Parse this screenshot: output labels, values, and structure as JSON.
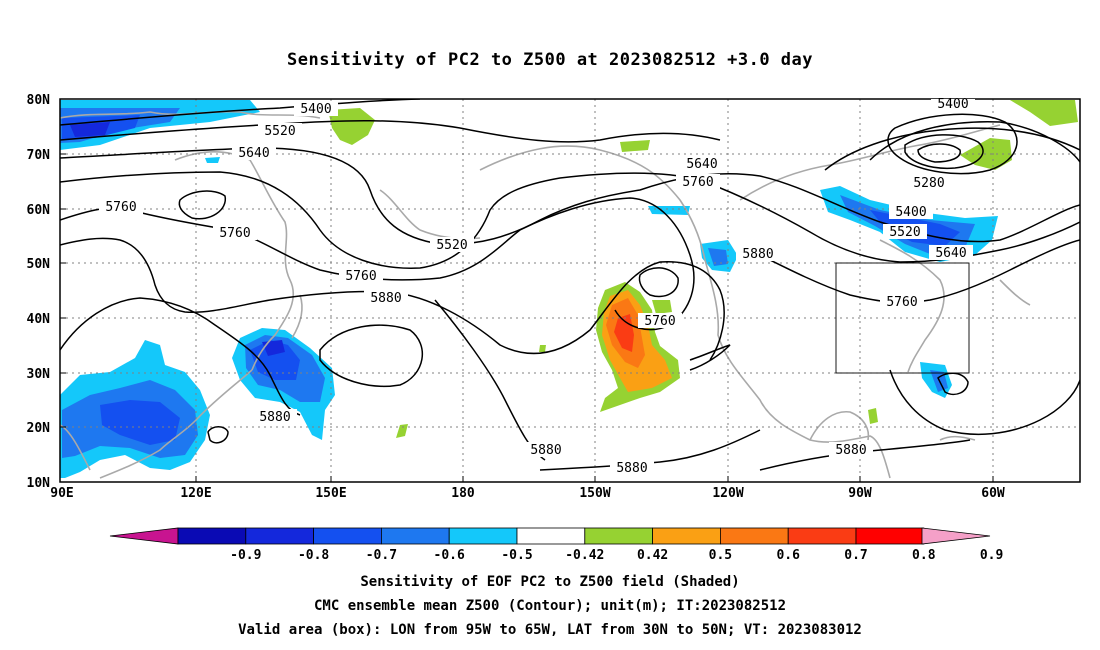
{
  "title": "Sensitivity of PC2 to Z500 at 2023082512 +3.0 day",
  "lat_labels": [
    "80N",
    "70N",
    "60N",
    "50N",
    "40N",
    "30N",
    "20N",
    "10N"
  ],
  "lon_labels": [
    "90E",
    "120E",
    "150E",
    "180",
    "150W",
    "120W",
    "90W",
    "60W"
  ],
  "contour_labels": [
    "5400",
    "5520",
    "5640",
    "5760",
    "5760",
    "5520",
    "5760",
    "5880",
    "5880",
    "5640",
    "5760",
    "5760",
    "5880",
    "5880",
    "5880",
    "5400",
    "5280",
    "5400",
    "5520",
    "5640",
    "5760",
    "5880"
  ],
  "colorbar": {
    "labels": [
      "-0.9",
      "-0.8",
      "-0.7",
      "-0.6",
      "-0.5",
      "-0.42",
      "0.42",
      "0.5",
      "0.6",
      "0.7",
      "0.8",
      "0.9"
    ],
    "colors": [
      "#c81490",
      "#0a0ab4",
      "#1428dc",
      "#1450f0",
      "#1e78f0",
      "#14c8fa",
      "#ffffff",
      "#96d232",
      "#faa014",
      "#fa7814",
      "#fa3c14",
      "#ff0000",
      "#f5a0c8"
    ]
  },
  "box": {
    "lon_from": "95W",
    "lon_to": "65W",
    "lat_from": "30N",
    "lat_to": "50N"
  },
  "footer": {
    "line1": "Sensitivity of EOF PC2 to Z500 field (Shaded)",
    "line2": "CMC ensemble mean Z500 (Contour); unit(m); IT:2023082512",
    "line3": "Valid area (box): LON from 95W to 65W, LAT from 30N to 50N; VT: 2023083012"
  }
}
